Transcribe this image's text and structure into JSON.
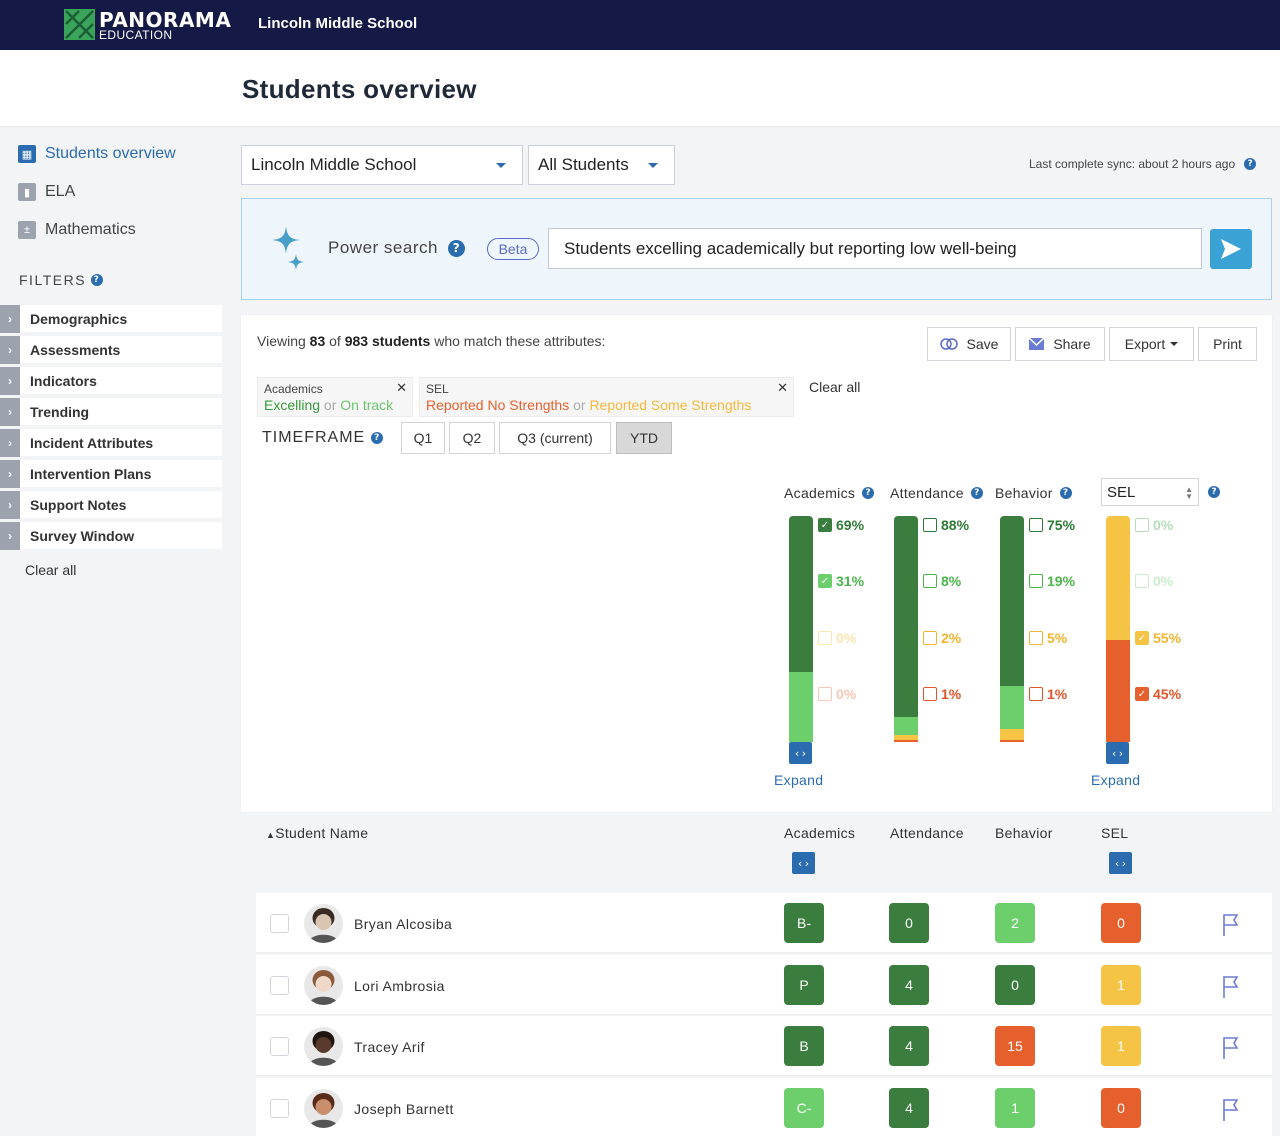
{
  "topbar": {
    "brand": "PANORAMA",
    "brand_sub": "EDUCATION",
    "school": "Lincoln Middle School"
  },
  "page_title": "Students overview",
  "sidebar": {
    "nav": [
      {
        "label": "Students overview",
        "icon": "grid-icon",
        "active": true
      },
      {
        "label": "ELA",
        "icon": "book-icon",
        "active": false
      },
      {
        "label": "Mathematics",
        "icon": "calculator-icon",
        "active": false
      }
    ],
    "filters_title": "FILTERS",
    "filters": [
      "Demographics",
      "Assessments",
      "Indicators",
      "Trending",
      "Incident Attributes",
      "Intervention Plans",
      "Support Notes",
      "Survey Window"
    ],
    "clear_all": "Clear all"
  },
  "controls": {
    "school_select": "Lincoln Middle School",
    "group_select": "All Students",
    "sync": "Last complete sync: about 2 hours ago"
  },
  "power_search": {
    "label": "Power search",
    "beta": "Beta",
    "query": "Students excelling academically but reporting low well-being"
  },
  "summary": {
    "prefix": "Viewing",
    "shown": "83",
    "of": "of",
    "total": "983 students",
    "suffix": "who match these attributes:",
    "buttons": {
      "save": "Save",
      "share": "Share",
      "export": "Export",
      "print": "Print"
    },
    "chips": [
      {
        "title": "Academics",
        "value1": "Excelling",
        "sep": "or",
        "value2": "On track",
        "color1": "#3a9a3f",
        "color2": "#6cc56c"
      },
      {
        "title": "SEL",
        "value1": "Reported No Strengths",
        "sep": "or",
        "value2": "Reported Some Strengths",
        "color1": "#e5602d",
        "color2": "#f5b83a"
      }
    ],
    "clear_all": "Clear all",
    "timeframe": {
      "label": "TIMEFRAME",
      "options": [
        "Q1",
        "Q2",
        "Q3 (current)",
        "YTD"
      ],
      "active": "YTD"
    }
  },
  "chart_data": {
    "type": "bar",
    "subtype": "stacked-100",
    "columns": [
      {
        "name": "Academics",
        "segments": [
          {
            "pct": 69,
            "label": "69%",
            "checked": true,
            "color": "#3a7d3f"
          },
          {
            "pct": 31,
            "label": "31%",
            "checked": true,
            "color": "#6ccf6c"
          },
          {
            "pct": 0,
            "label": "0%",
            "checked": false,
            "color": "#f5c445"
          },
          {
            "pct": 0,
            "label": "0%",
            "checked": false,
            "color": "#e5602d"
          }
        ]
      },
      {
        "name": "Attendance",
        "segments": [
          {
            "pct": 88,
            "label": "88%",
            "checked": false,
            "color": "#3a7d3f"
          },
          {
            "pct": 8,
            "label": "8%",
            "checked": false,
            "color": "#6ccf6c"
          },
          {
            "pct": 2,
            "label": "2%",
            "checked": false,
            "color": "#f5c445"
          },
          {
            "pct": 1,
            "label": "1%",
            "checked": false,
            "color": "#e5602d"
          }
        ]
      },
      {
        "name": "Behavior",
        "segments": [
          {
            "pct": 75,
            "label": "75%",
            "checked": false,
            "color": "#3a7d3f"
          },
          {
            "pct": 19,
            "label": "19%",
            "checked": false,
            "color": "#6ccf6c"
          },
          {
            "pct": 5,
            "label": "5%",
            "checked": false,
            "color": "#f5c445"
          },
          {
            "pct": 1,
            "label": "1%",
            "checked": false,
            "color": "#e5602d"
          }
        ]
      },
      {
        "name": "SEL",
        "segments": [
          {
            "pct": 0,
            "label": "0%",
            "checked": false,
            "color": "#3a7d3f"
          },
          {
            "pct": 0,
            "label": "0%",
            "checked": false,
            "color": "#6ccf6c"
          },
          {
            "pct": 55,
            "label": "55%",
            "checked": true,
            "color": "#f5c445"
          },
          {
            "pct": 45,
            "label": "45%",
            "checked": true,
            "color": "#e5602d"
          }
        ]
      }
    ],
    "expand_label": "Expand"
  },
  "table": {
    "headers": {
      "name": "Student Name",
      "academics": "Academics",
      "attendance": "Attendance",
      "behavior": "Behavior",
      "sel": "SEL"
    },
    "rows": [
      {
        "name": "Bryan Alcosiba",
        "academics": "B-",
        "attendance": "0",
        "behavior": "2",
        "sel": "0",
        "colors": [
          "#3a7d3f",
          "#3a7d3f",
          "#6ccf6c",
          "#e5602d"
        ],
        "avatar": [
          "#d9c4b0",
          "#3a2a22"
        ]
      },
      {
        "name": "Lori Ambrosia",
        "academics": "P",
        "attendance": "4",
        "behavior": "0",
        "sel": "1",
        "colors": [
          "#3a7d3f",
          "#3a7d3f",
          "#3a7d3f",
          "#f5c445"
        ],
        "avatar": [
          "#efd8c8",
          "#8b5a3c"
        ]
      },
      {
        "name": "Tracey Arif",
        "academics": "B",
        "attendance": "4",
        "behavior": "15",
        "sel": "1",
        "colors": [
          "#3a7d3f",
          "#3a7d3f",
          "#e5602d",
          "#f5c445"
        ],
        "avatar": [
          "#5a3a2c",
          "#1e1410"
        ]
      },
      {
        "name": "Joseph Barnett",
        "academics": "C-",
        "attendance": "4",
        "behavior": "1",
        "sel": "0",
        "colors": [
          "#6ccf6c",
          "#3a7d3f",
          "#6ccf6c",
          "#e5602d"
        ],
        "avatar": [
          "#c98f6c",
          "#5a2a1a"
        ]
      }
    ]
  }
}
